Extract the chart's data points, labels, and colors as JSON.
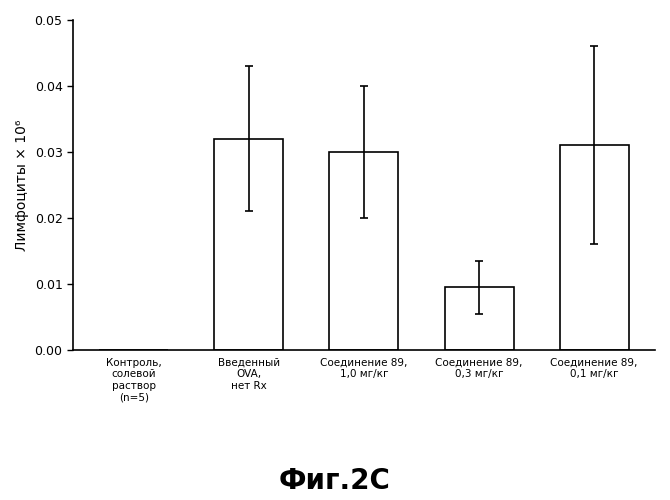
{
  "categories": [
    "Контроль,\nсолевой\nраствор\n(n=5)",
    "Введенный\nOVA,\nнет Rx",
    "Соединение 89,\n1,0 мг/кг",
    "Соединение 89,\n0,3 мг/кг",
    "Соединение 89,\n0,1 мг/кг"
  ],
  "values": [
    0.0,
    0.032,
    0.03,
    0.0095,
    0.031
  ],
  "errors": [
    0.0,
    0.011,
    0.01,
    0.004,
    0.015
  ],
  "bar_color": "#ffffff",
  "bar_edgecolor": "#000000",
  "bar_width": 0.6,
  "ylabel": "Лимфоциты × 10⁶",
  "ylim": [
    0.0,
    0.05
  ],
  "yticks": [
    0.0,
    0.01,
    0.02,
    0.03,
    0.04,
    0.05
  ],
  "ytick_labels": [
    "0.00",
    "0.01",
    "0.02",
    "0.03",
    "0.04",
    "0.05"
  ],
  "title": "Фиг.2C",
  "title_fontsize": 20,
  "title_fontweight": "bold",
  "xlabel_fontsize": 7.5,
  "ylabel_fontsize": 10,
  "ytick_fontsize": 9,
  "background_color": "#ffffff",
  "capsize": 3,
  "elinewidth": 1.2,
  "bar_linewidth": 1.2
}
